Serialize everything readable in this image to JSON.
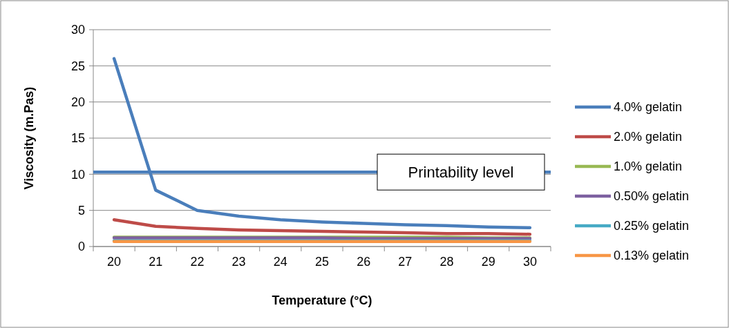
{
  "chart_data": {
    "type": "line",
    "xlabel": "Temperature (°C)",
    "ylabel": "Viscosity (m.Pas)",
    "categories": [
      "20",
      "21",
      "22",
      "23",
      "24",
      "25",
      "26",
      "27",
      "28",
      "29",
      "30"
    ],
    "series": [
      {
        "name": "4.0% gelatin",
        "color": "#4a7ebb",
        "values": [
          26,
          7.8,
          5.0,
          4.2,
          3.7,
          3.4,
          3.2,
          3.0,
          2.9,
          2.7,
          2.6
        ]
      },
      {
        "name": "2.0% gelatin",
        "color": "#be4b48",
        "values": [
          3.7,
          2.8,
          2.5,
          2.3,
          2.2,
          2.1,
          2.0,
          1.9,
          1.8,
          1.8,
          1.7
        ]
      },
      {
        "name": "1.0% gelatin",
        "color": "#98b954",
        "values": [
          1.3,
          1.3,
          1.3,
          1.3,
          1.3,
          1.3,
          1.3,
          1.3,
          1.3,
          1.2,
          1.2
        ]
      },
      {
        "name": "0.50% gelatin",
        "color": "#7d60a0",
        "values": [
          1.2,
          1.2,
          1.2,
          1.2,
          1.2,
          1.2,
          1.1,
          1.1,
          1.1,
          1.1,
          1.1
        ]
      },
      {
        "name": "0.25% gelatin",
        "color": "#46aac5",
        "values": [
          0.8,
          0.8,
          0.8,
          0.8,
          0.8,
          0.8,
          0.8,
          0.8,
          0.8,
          0.8,
          0.8
        ]
      },
      {
        "name": "0.13% gelatin",
        "color": "#f79646",
        "values": [
          0.7,
          0.7,
          0.7,
          0.7,
          0.7,
          0.7,
          0.7,
          0.7,
          0.7,
          0.7,
          0.7
        ]
      }
    ],
    "ylim": [
      0,
      30
    ],
    "yticks": [
      0,
      5,
      10,
      15,
      20,
      25,
      30
    ],
    "grid": "y",
    "legend": "right",
    "marker": "none",
    "line_style": "solid",
    "ref_lines": [
      {
        "axis": "y",
        "value": 10.3,
        "label": "Printability level",
        "color": "#4a7ebb"
      }
    ]
  }
}
